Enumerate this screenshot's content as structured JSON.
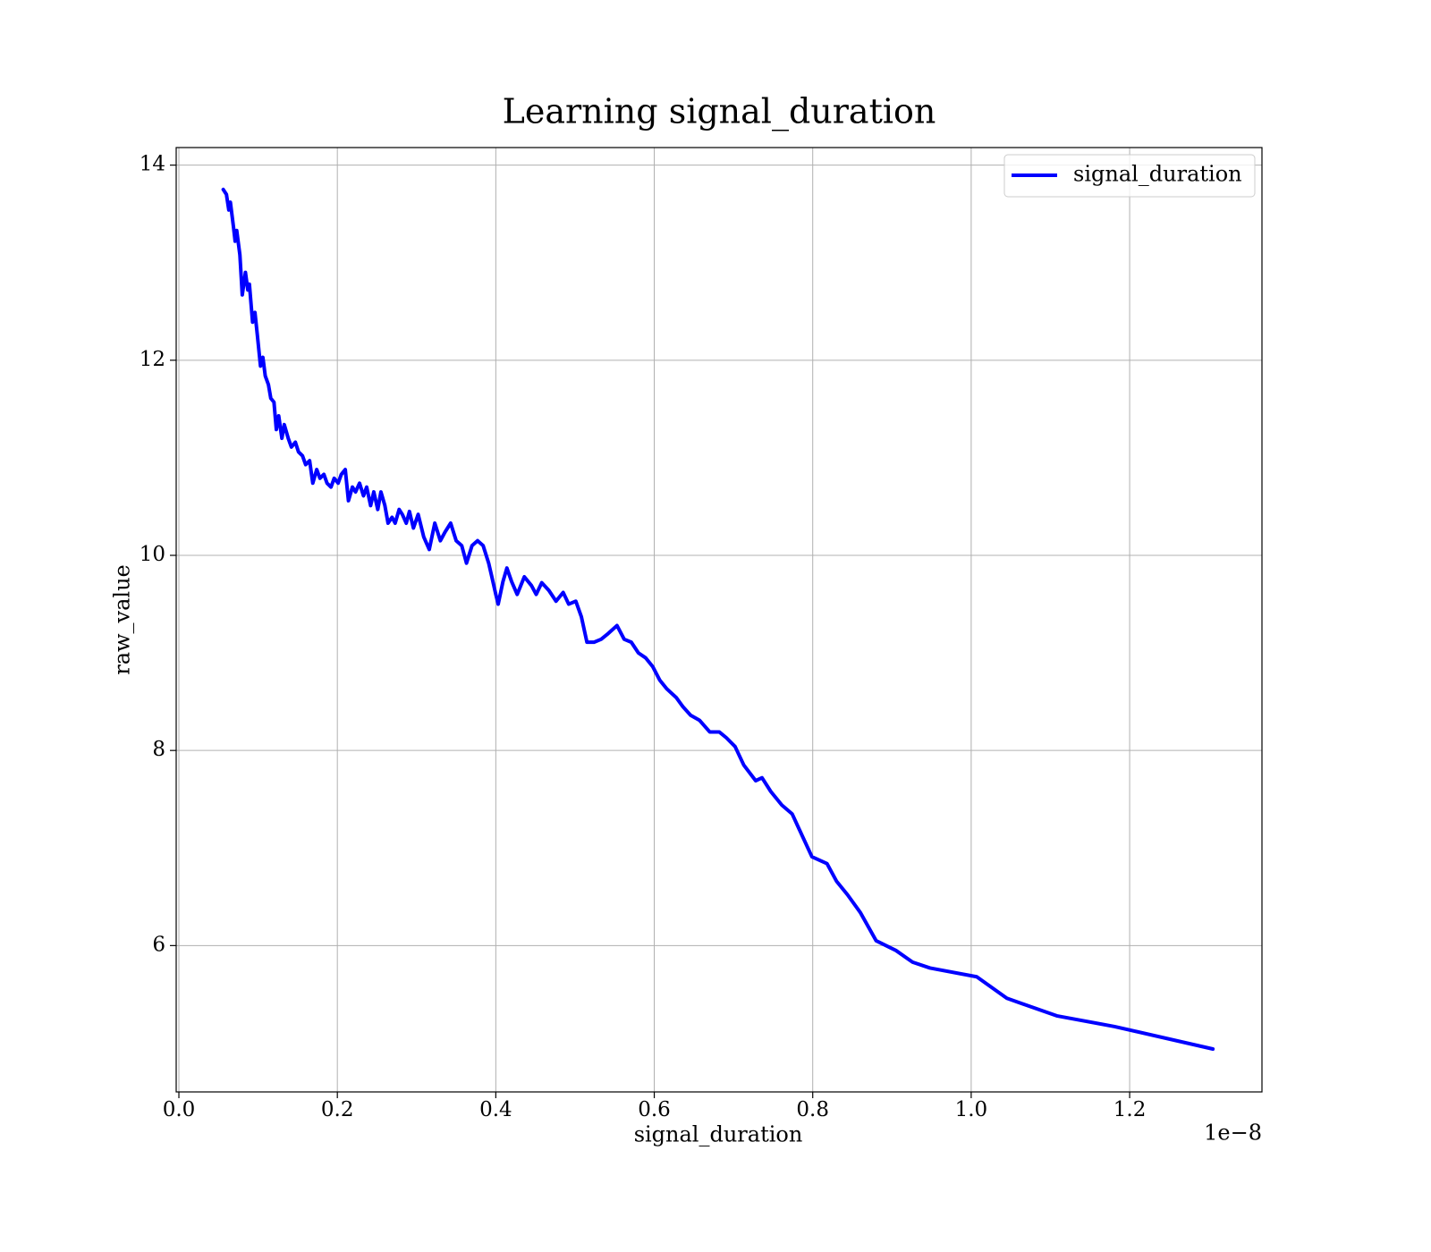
{
  "chart_data": {
    "type": "line",
    "title": "Learning signal_duration",
    "xlabel": "signal_duration",
    "ylabel": "raw_value",
    "x_offset_label": "1e−8",
    "xlim": [
      -0.0034,
      1.367
    ],
    "ylim": [
      4.5,
      14.18
    ],
    "xticks": [
      {
        "value": 0,
        "label": "0.0"
      },
      0.2,
      0.4,
      0.6,
      0.8,
      {
        "value": 1,
        "label": "1.0"
      },
      1.2
    ],
    "yticks": [
      6,
      8,
      10,
      12,
      14
    ],
    "grid": true,
    "legend": "upper right",
    "series": [
      {
        "name": "signal_duration",
        "color": "#0000ff",
        "x": [
          0.056,
          0.06,
          0.063,
          0.065,
          0.069,
          0.071,
          0.073,
          0.077,
          0.08,
          0.084,
          0.087,
          0.089,
          0.093,
          0.096,
          0.099,
          0.103,
          0.106,
          0.109,
          0.113,
          0.116,
          0.12,
          0.123,
          0.126,
          0.13,
          0.133,
          0.138,
          0.142,
          0.147,
          0.151,
          0.156,
          0.16,
          0.165,
          0.169,
          0.174,
          0.178,
          0.183,
          0.187,
          0.192,
          0.196,
          0.201,
          0.205,
          0.21,
          0.214,
          0.219,
          0.223,
          0.228,
          0.233,
          0.237,
          0.242,
          0.246,
          0.251,
          0.255,
          0.26,
          0.264,
          0.269,
          0.273,
          0.278,
          0.282,
          0.287,
          0.291,
          0.296,
          0.302,
          0.309,
          0.316,
          0.323,
          0.33,
          0.336,
          0.343,
          0.35,
          0.357,
          0.363,
          0.37,
          0.377,
          0.384,
          0.391,
          0.395,
          0.4,
          0.403,
          0.409,
          0.414,
          0.42,
          0.427,
          0.436,
          0.445,
          0.451,
          0.458,
          0.467,
          0.476,
          0.485,
          0.492,
          0.501,
          0.508,
          0.515,
          0.524,
          0.533,
          0.542,
          0.553,
          0.562,
          0.571,
          0.58,
          0.589,
          0.598,
          0.607,
          0.616,
          0.628,
          0.636,
          0.646,
          0.657,
          0.67,
          0.682,
          0.691,
          0.702,
          0.713,
          0.728,
          0.736,
          0.747,
          0.761,
          0.774,
          0.799,
          0.818,
          0.83,
          0.844,
          0.86,
          0.88,
          0.905,
          0.926,
          0.948,
          1.007,
          1.045,
          1.108,
          1.181,
          1.305
        ],
        "values": [
          13.75,
          13.7,
          13.54,
          13.62,
          13.36,
          13.22,
          13.33,
          13.08,
          12.67,
          12.9,
          12.72,
          12.78,
          12.39,
          12.49,
          12.26,
          11.94,
          12.03,
          11.84,
          11.75,
          11.61,
          11.57,
          11.29,
          11.43,
          11.2,
          11.34,
          11.2,
          11.11,
          11.16,
          11.06,
          11.02,
          10.93,
          10.97,
          10.74,
          10.88,
          10.79,
          10.83,
          10.74,
          10.7,
          10.79,
          10.74,
          10.83,
          10.88,
          10.56,
          10.7,
          10.65,
          10.74,
          10.61,
          10.7,
          10.51,
          10.65,
          10.47,
          10.65,
          10.51,
          10.33,
          10.39,
          10.33,
          10.47,
          10.42,
          10.33,
          10.45,
          10.28,
          10.42,
          10.19,
          10.06,
          10.33,
          10.15,
          10.24,
          10.33,
          10.15,
          10.1,
          9.92,
          10.1,
          10.15,
          10.1,
          9.92,
          9.78,
          9.6,
          9.5,
          9.73,
          9.87,
          9.73,
          9.6,
          9.78,
          9.69,
          9.6,
          9.72,
          9.64,
          9.53,
          9.62,
          9.5,
          9.53,
          9.37,
          9.11,
          9.11,
          9.14,
          9.2,
          9.28,
          9.14,
          9.11,
          9.0,
          8.95,
          8.86,
          8.72,
          8.63,
          8.54,
          8.45,
          8.36,
          8.31,
          8.19,
          8.19,
          8.13,
          8.04,
          7.85,
          7.69,
          7.72,
          7.58,
          7.44,
          7.35,
          6.91,
          6.84,
          6.66,
          6.52,
          6.34,
          6.05,
          5.95,
          5.83,
          5.77,
          5.68,
          5.46,
          5.28,
          5.17,
          4.94
        ]
      }
    ]
  }
}
